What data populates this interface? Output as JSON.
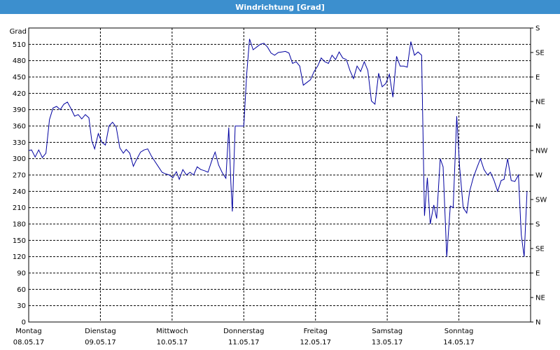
{
  "window": {
    "title": "Windrichtung [Grad]"
  },
  "chart_data": {
    "type": "line",
    "title": "Windrichtung [Grad]",
    "ylabel": "Grad",
    "ylim": [
      0,
      540
    ],
    "grid": true,
    "y_ticks": [
      0,
      30,
      60,
      90,
      120,
      150,
      180,
      210,
      240,
      270,
      300,
      330,
      360,
      390,
      420,
      450,
      480,
      510
    ],
    "y_right_ticks": [
      {
        "value": 0,
        "label": "N"
      },
      {
        "value": 45,
        "label": "NE"
      },
      {
        "value": 90,
        "label": "E"
      },
      {
        "value": 135,
        "label": "SE"
      },
      {
        "value": 180,
        "label": "S"
      },
      {
        "value": 225,
        "label": "SW"
      },
      {
        "value": 270,
        "label": "W"
      },
      {
        "value": 315,
        "label": "NW"
      },
      {
        "value": 360,
        "label": "N"
      },
      {
        "value": 405,
        "label": "NE"
      },
      {
        "value": 450,
        "label": "E"
      },
      {
        "value": 495,
        "label": "SE"
      },
      {
        "value": 540,
        "label": "S"
      }
    ],
    "xlim": [
      0,
      7
    ],
    "x_ticks": [
      {
        "value": 0,
        "day": "Montag",
        "date": "08.05.17"
      },
      {
        "value": 1,
        "day": "Dienstag",
        "date": "09.05.17"
      },
      {
        "value": 2,
        "day": "Mittwoch",
        "date": "10.05.17"
      },
      {
        "value": 3,
        "day": "Donnerstag",
        "date": "11.05.17"
      },
      {
        "value": 4,
        "day": "Freitag",
        "date": "12.05.17"
      },
      {
        "value": 5,
        "day": "Samstag",
        "date": "13.05.17"
      },
      {
        "value": 6,
        "day": "Sonntag",
        "date": "14.05.17"
      }
    ],
    "series": [
      {
        "color": "#0000a0",
        "points": [
          [
            0.0,
            315
          ],
          [
            0.04,
            316
          ],
          [
            0.09,
            303
          ],
          [
            0.14,
            316
          ],
          [
            0.19,
            302
          ],
          [
            0.24,
            310
          ],
          [
            0.29,
            372
          ],
          [
            0.34,
            393
          ],
          [
            0.39,
            396
          ],
          [
            0.44,
            390
          ],
          [
            0.49,
            400
          ],
          [
            0.54,
            404
          ],
          [
            0.59,
            392
          ],
          [
            0.64,
            378
          ],
          [
            0.69,
            381
          ],
          [
            0.74,
            373
          ],
          [
            0.79,
            381
          ],
          [
            0.84,
            375
          ],
          [
            0.88,
            333
          ],
          [
            0.92,
            318
          ],
          [
            0.97,
            346
          ],
          [
            1.02,
            330
          ],
          [
            1.07,
            325
          ],
          [
            1.12,
            360
          ],
          [
            1.17,
            367
          ],
          [
            1.22,
            358
          ],
          [
            1.27,
            320
          ],
          [
            1.32,
            310
          ],
          [
            1.36,
            317
          ],
          [
            1.41,
            310
          ],
          [
            1.46,
            286
          ],
          [
            1.51,
            300
          ],
          [
            1.56,
            312
          ],
          [
            1.61,
            316
          ],
          [
            1.66,
            318
          ],
          [
            1.71,
            305
          ],
          [
            1.76,
            295
          ],
          [
            1.81,
            285
          ],
          [
            1.86,
            275
          ],
          [
            1.91,
            272
          ],
          [
            1.96,
            270
          ],
          [
            2.01,
            265
          ],
          [
            2.06,
            276
          ],
          [
            2.1,
            262
          ],
          [
            2.15,
            280
          ],
          [
            2.2,
            270
          ],
          [
            2.25,
            275
          ],
          [
            2.3,
            270
          ],
          [
            2.35,
            285
          ],
          [
            2.4,
            280
          ],
          [
            2.45,
            278
          ],
          [
            2.5,
            275
          ],
          [
            2.55,
            295
          ],
          [
            2.6,
            312
          ],
          [
            2.65,
            288
          ],
          [
            2.7,
            274
          ],
          [
            2.75,
            264
          ],
          [
            2.79,
            357
          ],
          [
            2.82,
            256
          ],
          [
            2.84,
            203
          ],
          [
            2.88,
            360
          ],
          [
            2.94,
            360
          ],
          [
            3.0,
            360
          ],
          [
            3.04,
            455
          ],
          [
            3.08,
            520
          ],
          [
            3.13,
            500
          ],
          [
            3.18,
            505
          ],
          [
            3.23,
            510
          ],
          [
            3.28,
            512
          ],
          [
            3.33,
            505
          ],
          [
            3.38,
            494
          ],
          [
            3.43,
            490
          ],
          [
            3.48,
            495
          ],
          [
            3.53,
            496
          ],
          [
            3.58,
            497
          ],
          [
            3.63,
            494
          ],
          [
            3.68,
            475
          ],
          [
            3.73,
            478
          ],
          [
            3.78,
            470
          ],
          [
            3.83,
            435
          ],
          [
            3.88,
            440
          ],
          [
            3.93,
            445
          ],
          [
            3.98,
            460
          ],
          [
            4.03,
            470
          ],
          [
            4.08,
            485
          ],
          [
            4.13,
            478
          ],
          [
            4.18,
            475
          ],
          [
            4.23,
            490
          ],
          [
            4.28,
            482
          ],
          [
            4.33,
            496
          ],
          [
            4.38,
            485
          ],
          [
            4.43,
            482
          ],
          [
            4.48,
            462
          ],
          [
            4.53,
            447
          ],
          [
            4.58,
            470
          ],
          [
            4.63,
            460
          ],
          [
            4.68,
            478
          ],
          [
            4.73,
            462
          ],
          [
            4.78,
            406
          ],
          [
            4.83,
            400
          ],
          [
            4.88,
            457
          ],
          [
            4.93,
            432
          ],
          [
            4.98,
            438
          ],
          [
            5.03,
            455
          ],
          [
            5.08,
            413
          ],
          [
            5.13,
            488
          ],
          [
            5.18,
            470
          ],
          [
            5.23,
            470
          ],
          [
            5.28,
            468
          ],
          [
            5.33,
            515
          ],
          [
            5.38,
            490
          ],
          [
            5.43,
            496
          ],
          [
            5.48,
            490
          ],
          [
            5.52,
            195
          ],
          [
            5.56,
            265
          ],
          [
            5.6,
            180
          ],
          [
            5.65,
            215
          ],
          [
            5.69,
            190
          ],
          [
            5.74,
            300
          ],
          [
            5.78,
            285
          ],
          [
            5.83,
            120
          ],
          [
            5.88,
            213
          ],
          [
            5.92,
            210
          ],
          [
            5.97,
            378
          ],
          [
            6.01,
            285
          ],
          [
            6.06,
            210
          ],
          [
            6.11,
            200
          ],
          [
            6.15,
            240
          ],
          [
            6.2,
            265
          ],
          [
            6.25,
            283
          ],
          [
            6.3,
            300
          ],
          [
            6.35,
            280
          ],
          [
            6.4,
            270
          ],
          [
            6.44,
            275
          ],
          [
            6.49,
            260
          ],
          [
            6.54,
            240
          ],
          [
            6.59,
            260
          ],
          [
            6.63,
            262
          ],
          [
            6.68,
            300
          ],
          [
            6.73,
            260
          ],
          [
            6.78,
            258
          ],
          [
            6.83,
            270
          ],
          [
            6.87,
            160
          ],
          [
            6.91,
            120
          ],
          [
            6.95,
            240
          ]
        ]
      }
    ]
  }
}
